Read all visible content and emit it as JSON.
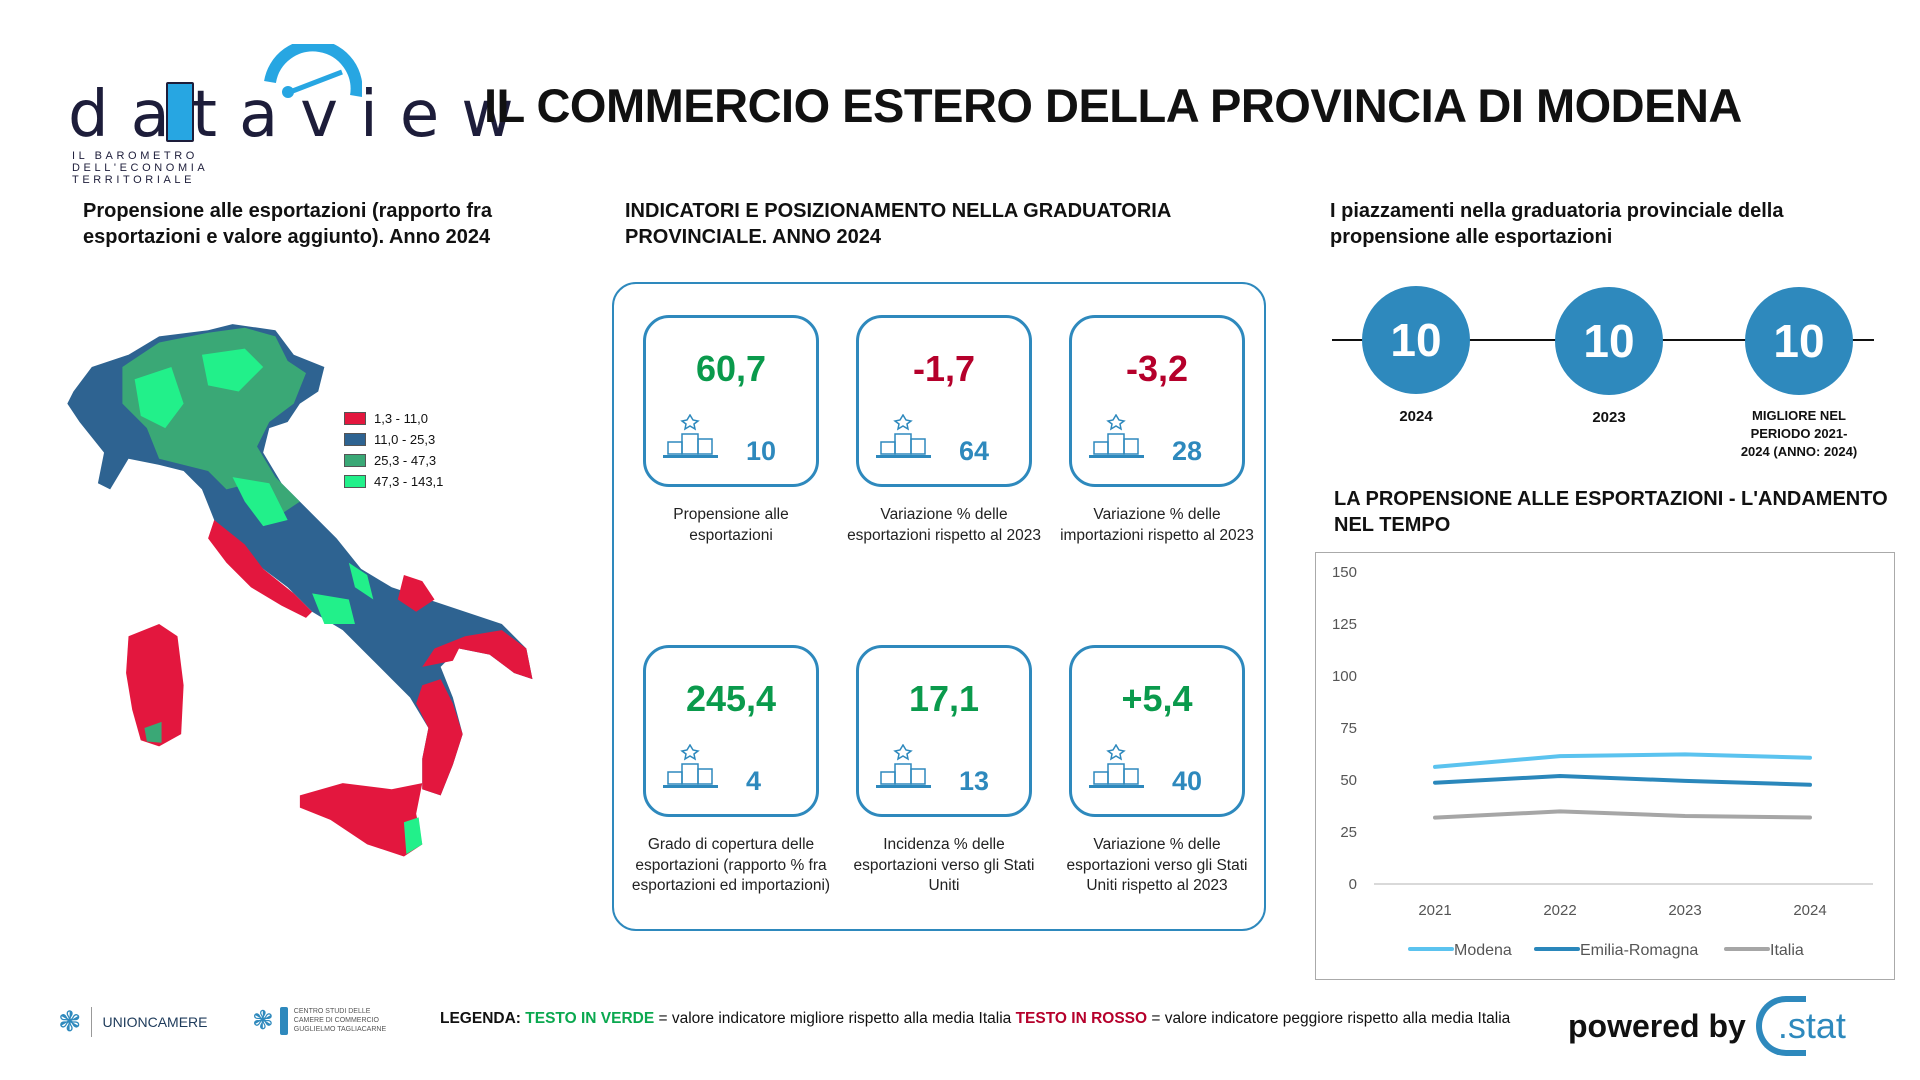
{
  "header": {
    "logo_text": "dataview",
    "logo_subtitle": "IL BAROMETRO DELL'ECONOMIA TERRITORIALE",
    "title": "IL COMMERCIO ESTERO DELLA PROVINCIA DI MODENA"
  },
  "map_section": {
    "title": "Propensione alle esportazioni (rapporto fra esportazioni e valore aggiunto). Anno 2024",
    "legend": [
      {
        "label": "1,3 - 11,0",
        "color": "#e3173e"
      },
      {
        "label": "11,0 - 25,3",
        "color": "#2e6391"
      },
      {
        "label": "25,3 - 47,3",
        "color": "#3aa876"
      },
      {
        "label": "47,3 - 143,1",
        "color": "#22f08a"
      }
    ]
  },
  "indicators": {
    "title": "INDICATORI E POSIZIONAMENTO NELLA GRADUATORIA PROVINCIALE. ANNO 2024",
    "cards": [
      {
        "value": "60,7",
        "rank": "10",
        "tone": "green",
        "description": "Propensione alle esportazioni"
      },
      {
        "value": "-1,7",
        "rank": "64",
        "tone": "red",
        "description": "Variazione % delle esportazioni rispetto al 2023"
      },
      {
        "value": "-3,2",
        "rank": "28",
        "tone": "red",
        "description": "Variazione % delle importazioni rispetto al 2023"
      },
      {
        "value": "245,4",
        "rank": "4",
        "tone": "green",
        "description": "Grado di copertura delle esportazioni (rapporto % fra esportazioni ed importazioni)"
      },
      {
        "value": "17,1",
        "rank": "13",
        "tone": "green",
        "description": "Incidenza % delle esportazioni verso gli Stati Uniti"
      },
      {
        "value": "+5,4",
        "rank": "40",
        "tone": "green",
        "description": "Variazione % delle esportazioni verso gli Stati Uniti rispetto al 2023"
      }
    ]
  },
  "rankings": {
    "title": "I piazzamenti nella graduatoria provinciale della propensione alle esportazioni",
    "items": [
      {
        "value": "10",
        "label": "2024"
      },
      {
        "value": "10",
        "label": "2023"
      },
      {
        "value": "10",
        "label": "MIGLIORE NEL PERIODO 2021-2024 (ANNO: 2024)"
      }
    ]
  },
  "chart_data": {
    "type": "line",
    "title": "LA PROPENSIONE ALLE ESPORTAZIONI - L'ANDAMENTO NEL TEMPO",
    "categories": [
      "2021",
      "2022",
      "2023",
      "2024"
    ],
    "ylim": [
      0,
      150
    ],
    "yticks": [
      0,
      25,
      50,
      75,
      100,
      125,
      150
    ],
    "legend_position": "bottom",
    "grid": false,
    "series": [
      {
        "name": "Modena",
        "color": "#5bc3ef",
        "values": [
          56.3,
          61.5,
          62.3,
          60.7
        ]
      },
      {
        "name": "Emilia-Romagna",
        "color": "#2a87bb",
        "values": [
          48.7,
          51.9,
          49.6,
          47.7
        ]
      },
      {
        "name": "Italia",
        "color": "#a6a6a6",
        "values": [
          31.9,
          34.9,
          32.7,
          32.0
        ]
      }
    ]
  },
  "footer": {
    "unioncamere": "UNIONCAMERE",
    "tagliacarne": "CENTRO STUDI DELLE CAMERE DI COMMERCIO GUGLIELMO TAGLIACARNE",
    "legend_label": "LEGENDA:",
    "green_label": "TESTO IN VERDE",
    "green_text": " = valore indicatore migliore rispetto alla media Italia ",
    "red_label": "TESTO IN ROSSO",
    "red_text": " = valore indicatore peggiore rispetto alla media Italia",
    "powered_by": "powered by",
    "stat_logo": ".stat"
  }
}
